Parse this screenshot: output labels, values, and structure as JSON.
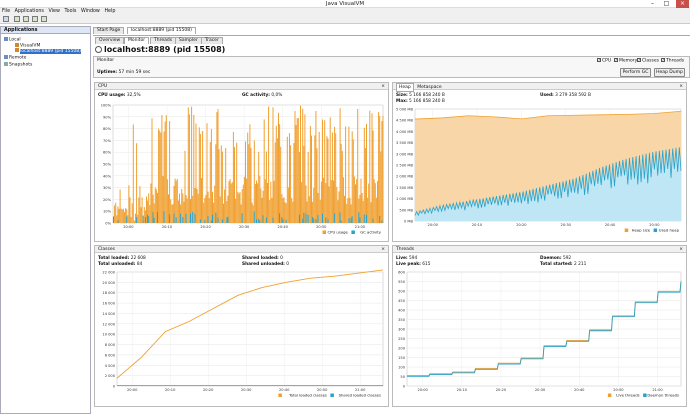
{
  "window": {
    "title": "Java VisualVM"
  },
  "menu": [
    "File",
    "Applications",
    "View",
    "Tools",
    "Window",
    "Help"
  ],
  "sidebar": {
    "header": "Applications",
    "items": [
      {
        "label": "Local"
      },
      {
        "label": "VisualVM"
      },
      {
        "label": "localhost:8889 (pid 15508)"
      },
      {
        "label": "Remote"
      },
      {
        "label": "Snapshots"
      }
    ]
  },
  "tabs": [
    "Start Page",
    "localhost:8889 (pid 15508)"
  ],
  "subtabs": [
    "Overview",
    "Monitor",
    "Threads",
    "Sampler",
    "Tracer"
  ],
  "header": {
    "title": "localhost:8889",
    "pid": "(pid 15508)"
  },
  "monitor": {
    "label": "Monitor",
    "uptime_label": "Uptime:",
    "uptime_value": "57 min 59 sec",
    "checks": [
      "CPU",
      "Memory",
      "Classes",
      "Threads"
    ],
    "perform_gc": "Perform GC",
    "heap_dump": "Heap Dump"
  },
  "cpu": {
    "title": "CPU",
    "usage_label": "CPU usage:",
    "usage_value": "32,5%",
    "gc_label": "GC activity:",
    "gc_value": "0,0%",
    "legend": [
      "CPU usage",
      "GC activity"
    ]
  },
  "heap": {
    "tabs": [
      "Heap",
      "Metaspace"
    ],
    "size_label": "Size:",
    "size_value": "5 166 858 240 B",
    "used_label": "Used:",
    "used_value": "3 279 358 592 B",
    "max_label": "Max:",
    "max_value": "5 166 858 240 B",
    "legend": [
      "Heap size",
      "Used heap"
    ]
  },
  "classes": {
    "title": "Classes",
    "total_loaded_label": "Total loaded:",
    "total_loaded_value": "22 608",
    "shared_loaded_label": "Shared loaded:",
    "shared_loaded_value": "0",
    "total_unloaded_label": "Total unloaded:",
    "total_unloaded_value": "84",
    "shared_unloaded_label": "Shared unloaded:",
    "shared_unloaded_value": "0",
    "legend": [
      "Total loaded classes",
      "Shared loaded classes"
    ]
  },
  "threads": {
    "title": "Threads",
    "live_label": "Live:",
    "live_value": "594",
    "daemon_label": "Daemon:",
    "daemon_value": "592",
    "live_peak_label": "Live peak:",
    "live_peak_value": "615",
    "total_started_label": "Total started:",
    "total_started_value": "2 211",
    "legend": [
      "Live threads",
      "Daemon threads"
    ]
  },
  "colors": {
    "orange": "#f0a030",
    "blue": "#2aa3cc",
    "heapfill": "#f8d6a8",
    "usedfill": "#bfe6f4"
  },
  "chart_data": [
    {
      "type": "area",
      "title": "CPU",
      "ylim": [
        0,
        100
      ],
      "yticks": [
        "0%",
        "10%",
        "20%",
        "30%",
        "40%",
        "50%",
        "60%",
        "70%",
        "80%",
        "90%",
        "100%"
      ],
      "xticks": [
        "20:00",
        "20:10",
        "20:20",
        "20:30",
        "20:40",
        "20:50",
        "21:00"
      ],
      "series": [
        {
          "name": "CPU usage"
        },
        {
          "name": "GC activity"
        }
      ]
    },
    {
      "type": "area",
      "title": "Heap",
      "ylim": [
        0,
        5000
      ],
      "yticks": [
        "0 MB",
        "500 MB",
        "1 000 MB",
        "1 500 MB",
        "2 000 MB",
        "2 500 MB",
        "3 000 MB",
        "3 500 MB",
        "4 000 MB",
        "4 500 MB",
        "5 000 MB"
      ],
      "xticks": [
        "20:00",
        "20:10",
        "20:20",
        "20:30",
        "20:40",
        "20:50"
      ],
      "series": [
        {
          "name": "Heap size",
          "values": [
            4550,
            4600,
            4700,
            4650,
            4560,
            4700,
            4720,
            4740,
            4760,
            4800,
            4900
          ]
        },
        {
          "name": "Used heap",
          "values": [
            400,
            700,
            900,
            1100,
            1300,
            1600,
            1900,
            2400,
            2800,
            3100,
            3300
          ]
        }
      ]
    },
    {
      "type": "line",
      "title": "Classes",
      "ylim": [
        0,
        22000
      ],
      "yticks": [
        "0",
        "2 000",
        "4 000",
        "6 000",
        "8 000",
        "10 000",
        "12 000",
        "14 000",
        "16 000",
        "18 000",
        "20 000",
        "22 000"
      ],
      "xticks": [
        "20:00",
        "20:10",
        "20:20",
        "20:30",
        "20:40",
        "20:50",
        "21:00"
      ],
      "series": [
        {
          "name": "Total loaded classes",
          "values": [
            1500,
            5500,
            10500,
            12500,
            15000,
            17500,
            19000,
            20000,
            20800,
            21200,
            21800,
            22400
          ]
        },
        {
          "name": "Shared loaded classes",
          "values": [
            0,
            0,
            0,
            0,
            0,
            0,
            0,
            0,
            0,
            0,
            0,
            0
          ]
        }
      ]
    },
    {
      "type": "line",
      "title": "Threads",
      "ylim": [
        0,
        650
      ],
      "yticks": [
        "0",
        "50",
        "100",
        "150",
        "200",
        "250",
        "300",
        "350",
        "400",
        "450",
        "500",
        "550",
        "600"
      ],
      "xticks": [
        "20:00",
        "20:10",
        "20:20",
        "20:30",
        "20:40",
        "20:50",
        "21:00"
      ],
      "series": [
        {
          "name": "Live threads",
          "values": [
            60,
            70,
            80,
            100,
            130,
            160,
            230,
            260,
            320,
            400,
            480,
            540,
            600
          ]
        },
        {
          "name": "Daemon threads",
          "values": [
            55,
            65,
            75,
            95,
            125,
            155,
            225,
            255,
            315,
            395,
            475,
            535,
            592
          ]
        }
      ]
    }
  ]
}
